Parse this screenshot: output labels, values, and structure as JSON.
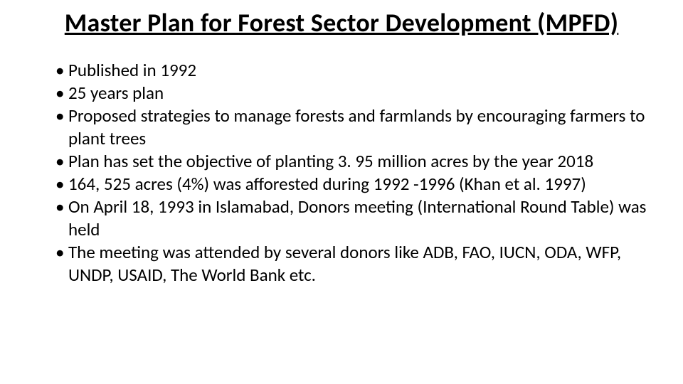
{
  "slide": {
    "title": "Master Plan for Forest Sector Development (MPFD)",
    "title_fontsize": 36,
    "title_fontweight": 700,
    "title_underline": true,
    "background_color": "#ffffff",
    "text_color": "#000000",
    "bullets": [
      "Published in 1992",
      "25 years plan",
      "Proposed strategies to manage forests and farmlands by encouraging farmers to plant trees",
      "Plan has set the objective of planting 3. 95 million acres by the year 2018",
      "164, 525 acres (4%) was afforested during 1992 -1996 (Khan et al. 1997)",
      "On April 18, 1993 in Islamabad, Donors meeting (International Round Table) was held",
      "The meeting was attended by several donors like ADB, FAO, IUCN, ODA, WFP, UNDP, USAID, The World Bank etc."
    ],
    "bullet_fontsize": 25,
    "bullet_marker": "•"
  }
}
